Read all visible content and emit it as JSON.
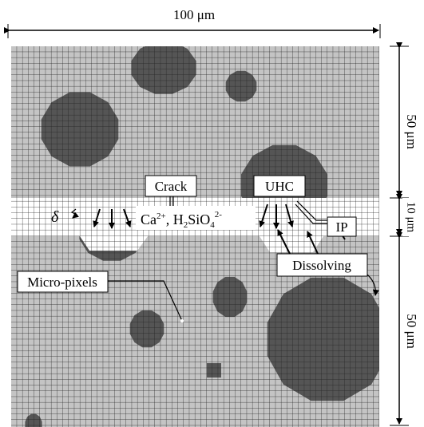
{
  "dimensions": {
    "width": "100 μm",
    "top": "50 μm",
    "middle": "10 μm",
    "bottom": "50 μm"
  },
  "labels": {
    "crack": "Crack",
    "uhc": "UHC",
    "ip": "IP",
    "dissolving": "Dissolving",
    "micro_pixels": "Micro-pixels",
    "delta": "δ"
  },
  "ions": {
    "parts": [
      "Ca",
      "2+",
      ", H",
      "2",
      "SiO",
      "4",
      "2-"
    ]
  }
}
